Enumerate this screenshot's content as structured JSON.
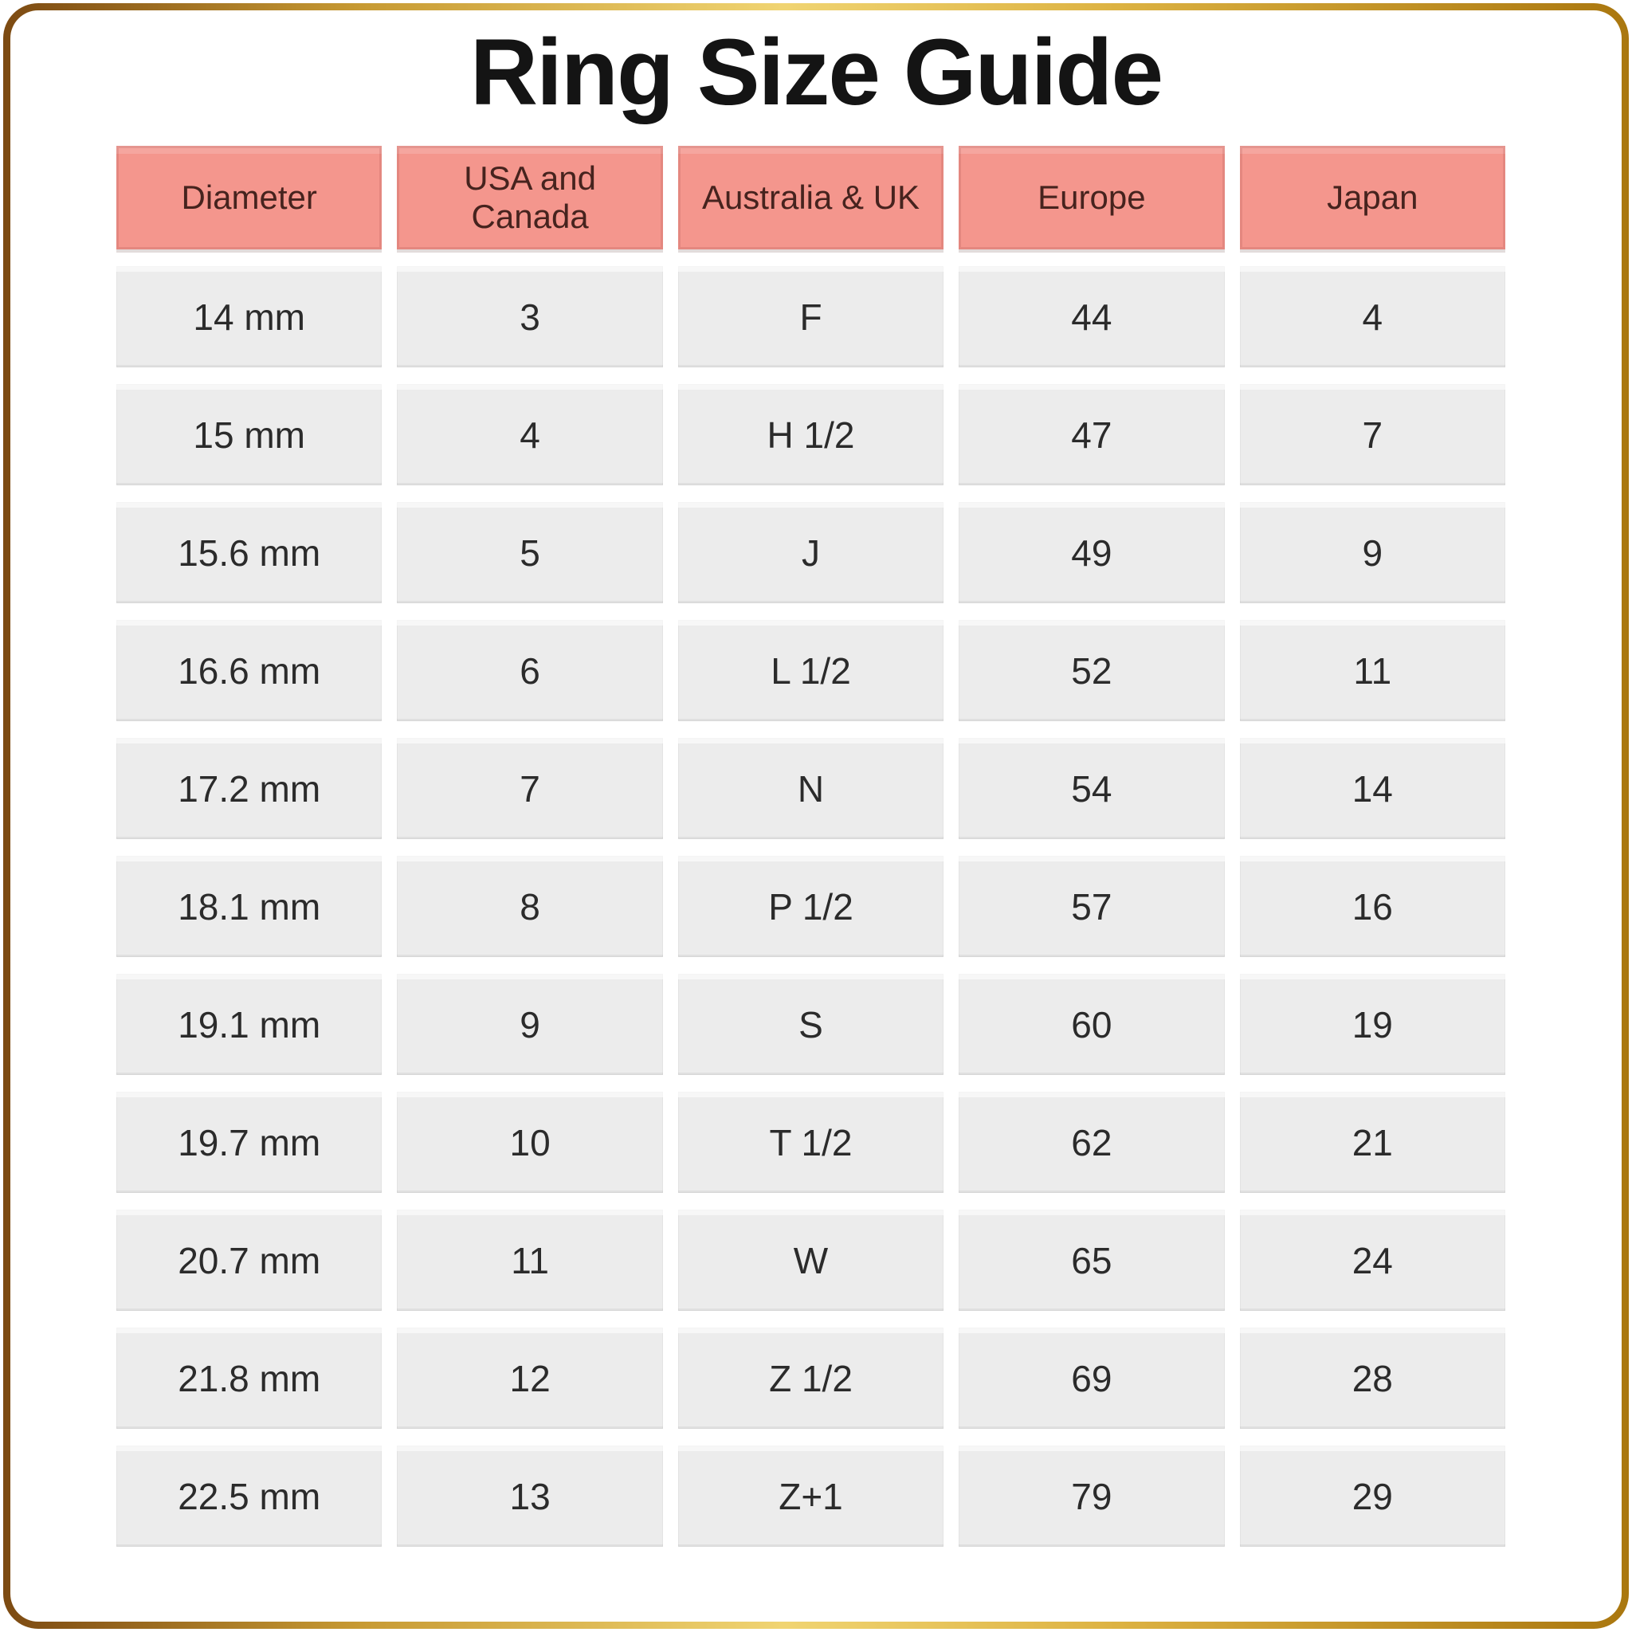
{
  "page": {
    "title": "Ring Size Guide"
  },
  "table": {
    "columns": [
      "Diameter",
      "USA and Canada",
      "Australia & UK",
      "Europe",
      "Japan"
    ],
    "rows": [
      [
        "14 mm",
        "3",
        "F",
        "44",
        "4"
      ],
      [
        "15 mm",
        "4",
        "H 1/2",
        "47",
        "7"
      ],
      [
        "15.6 mm",
        "5",
        "J",
        "49",
        "9"
      ],
      [
        "16.6 mm",
        "6",
        "L 1/2",
        "52",
        "11"
      ],
      [
        "17.2 mm",
        "7",
        "N",
        "54",
        "14"
      ],
      [
        "18.1 mm",
        "8",
        "P 1/2",
        "57",
        "16"
      ],
      [
        "19.1 mm",
        "9",
        "S",
        "60",
        "19"
      ],
      [
        "19.7 mm",
        "10",
        "T 1/2",
        "62",
        "21"
      ],
      [
        "20.7 mm",
        "11",
        "W",
        "65",
        "24"
      ],
      [
        "21.8 mm",
        "12",
        "Z 1/2",
        "69",
        "28"
      ],
      [
        "22.5 mm",
        "13",
        "Z+1",
        "79",
        "29"
      ]
    ]
  },
  "colors": {
    "header_bg": "#F4968D",
    "header_text": "#46231E",
    "cell_bg": "#ECECEC",
    "cell_text": "#2B2B2B",
    "title_text": "#141414",
    "gold_dark": "#7C4A12",
    "gold_light": "#F0D472",
    "gold_mid": "#AA770F"
  }
}
